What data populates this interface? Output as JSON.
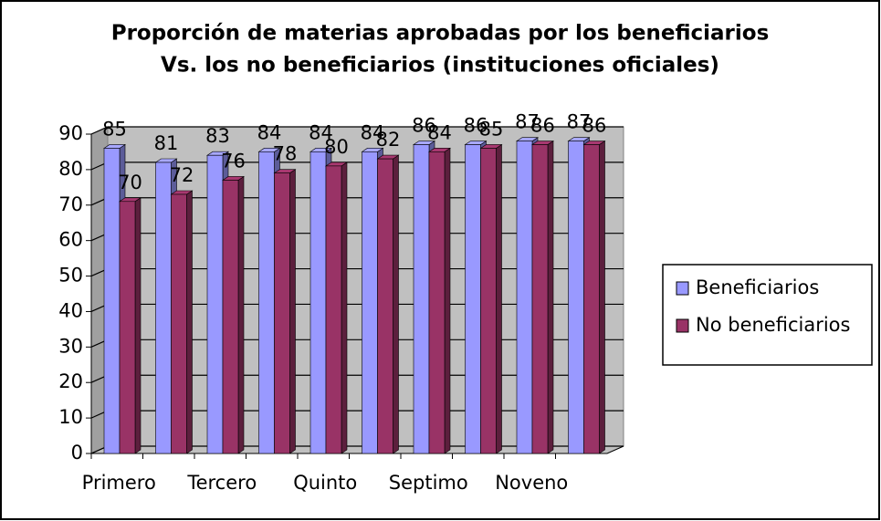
{
  "chart_data": {
    "type": "bar3d",
    "title": [
      "Proporción de materias aprobadas por los beneficiarios",
      "Vs. los no beneficiarios (instituciones oficiales)"
    ],
    "categories": [
      "Primero",
      null,
      "Tercero",
      null,
      "Quinto",
      null,
      "Septimo",
      null,
      "Noveno",
      null
    ],
    "series": [
      {
        "name": "Beneficiarios",
        "color": "#9999ff",
        "values": [
          85,
          81,
          83,
          84,
          84,
          84,
          86,
          86,
          87,
          87
        ]
      },
      {
        "name": "No beneficiarios",
        "color": "#993366",
        "values": [
          70,
          72,
          76,
          78,
          80,
          82,
          84,
          85,
          86,
          86
        ]
      }
    ],
    "ylim": [
      0,
      90
    ],
    "yticks": [
      0,
      10,
      20,
      30,
      40,
      50,
      60,
      70,
      80,
      90
    ],
    "grid": true,
    "legend": "right"
  }
}
